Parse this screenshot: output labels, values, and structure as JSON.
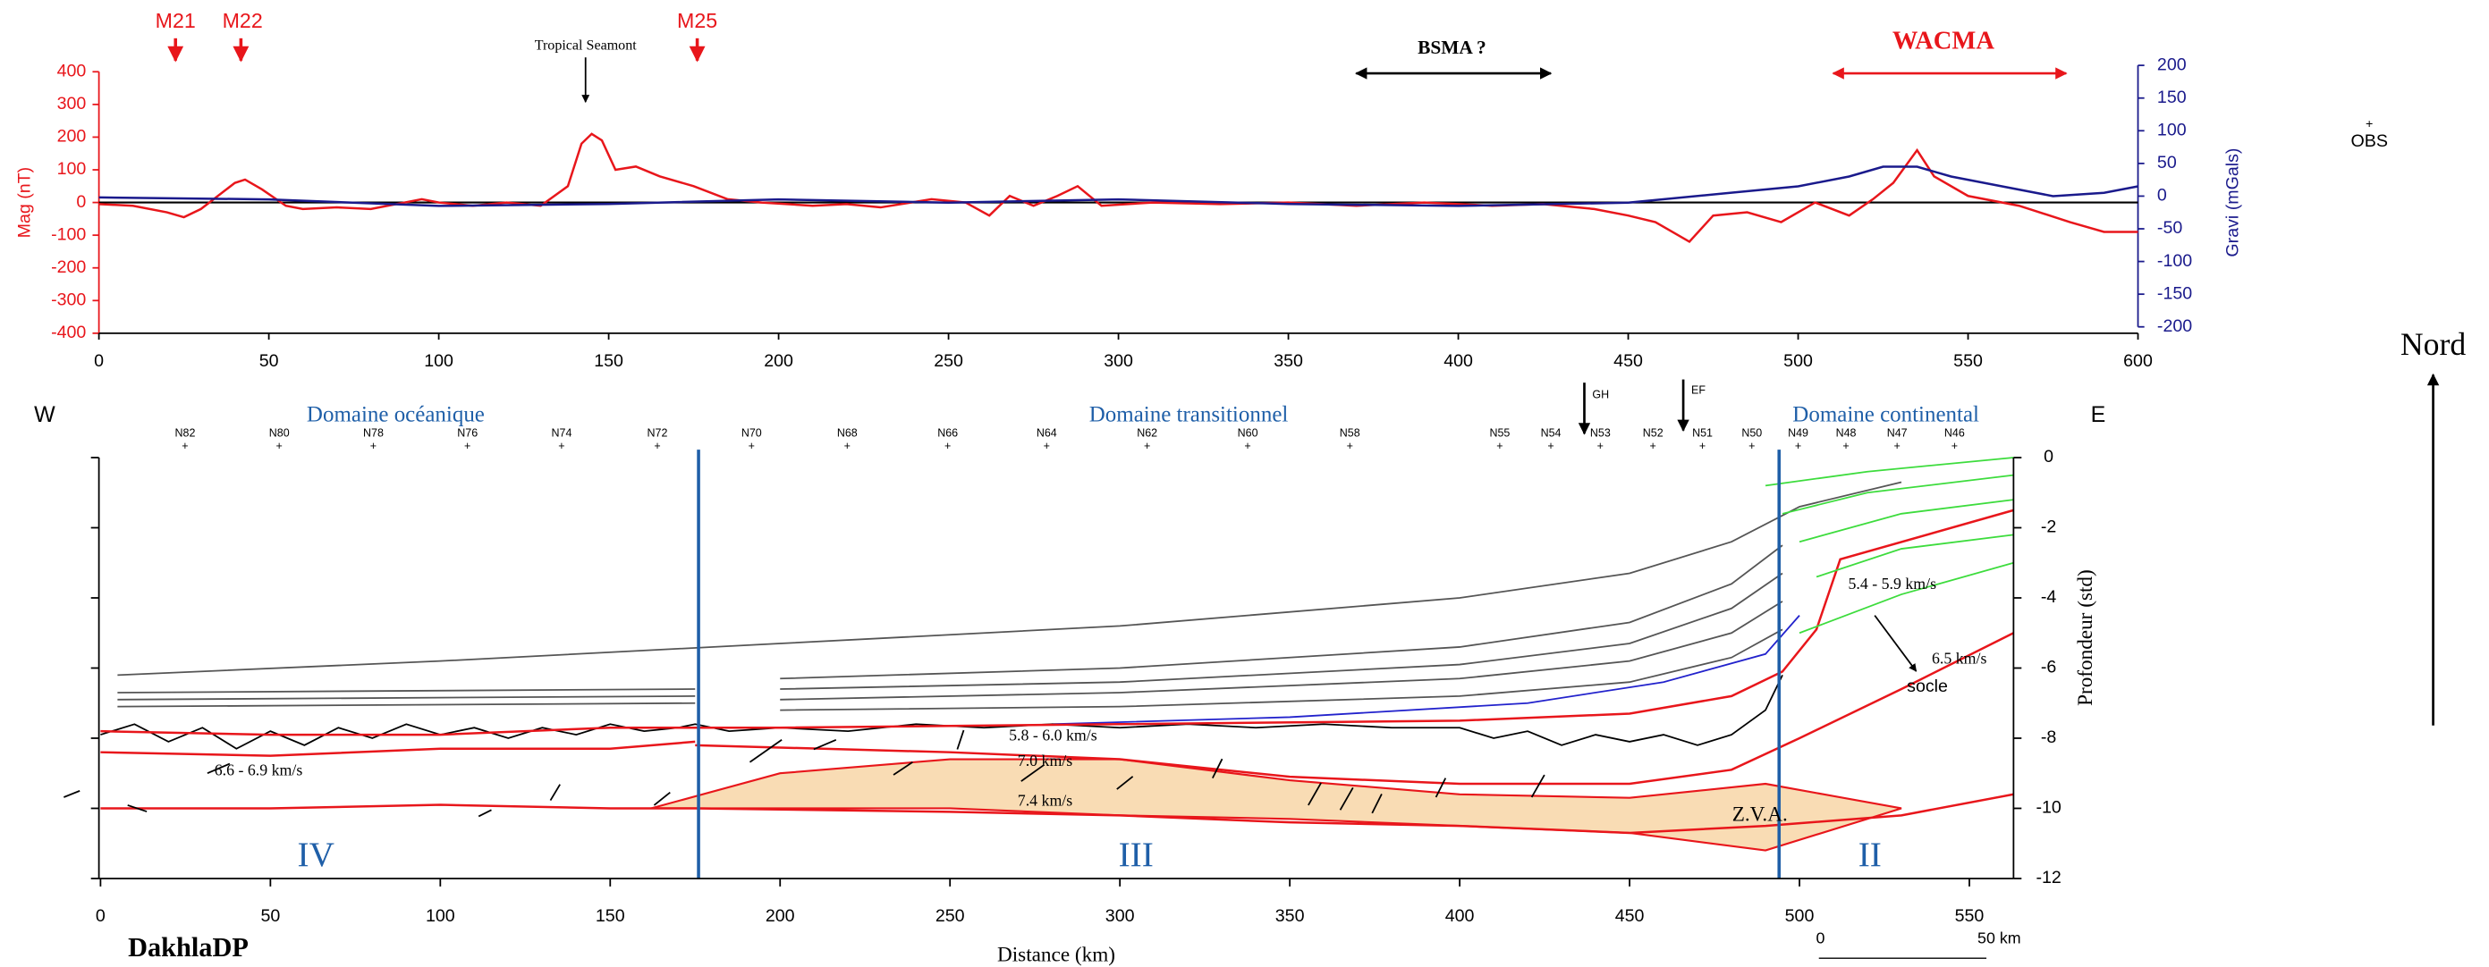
{
  "chart_data": [
    {
      "type": "line",
      "ylabel": "Mag (nT)",
      "y2label": "Gravi (mGals)",
      "xlim": [
        0,
        600
      ],
      "xticks": [
        0,
        50,
        100,
        150,
        200,
        250,
        300,
        350,
        400,
        450,
        500,
        550,
        600
      ],
      "ylim": [
        -400,
        400
      ],
      "yticks": [
        -400,
        -300,
        -200,
        -100,
        0,
        100,
        200,
        300,
        400
      ],
      "y2lim": [
        -200,
        200
      ],
      "y2ticks": [
        -200,
        -150,
        -100,
        -50,
        0,
        50,
        100,
        150,
        200
      ],
      "series": [
        {
          "color": "#e8161b",
          "x": [
            0,
            10,
            20,
            25,
            30,
            35,
            40,
            43,
            48,
            55,
            60,
            70,
            80,
            90,
            95,
            100,
            110,
            120,
            130,
            138,
            142,
            145,
            148,
            152,
            158,
            165,
            175,
            185,
            195,
            210,
            220,
            230,
            245,
            255,
            262,
            268,
            275,
            282,
            288,
            295,
            310,
            330,
            350,
            370,
            390,
            410,
            425,
            440,
            450,
            458,
            468,
            475,
            485,
            495,
            505,
            515,
            522,
            528,
            535,
            540,
            550,
            565,
            580,
            590,
            600
          ],
          "values": [
            -5,
            -10,
            -30,
            -45,
            -20,
            20,
            60,
            70,
            40,
            -10,
            -20,
            -15,
            -20,
            0,
            10,
            0,
            -10,
            0,
            -10,
            50,
            180,
            210,
            190,
            100,
            110,
            80,
            50,
            10,
            0,
            -10,
            -5,
            -15,
            10,
            0,
            -40,
            20,
            -10,
            20,
            50,
            -10,
            0,
            -5,
            0,
            -10,
            0,
            -10,
            -5,
            -20,
            -40,
            -60,
            -120,
            -40,
            -30,
            -60,
            0,
            -40,
            10,
            60,
            160,
            80,
            20,
            -10,
            -60,
            -90,
            -90
          ]
        },
        {
          "color": "#1a1a8c",
          "axis": "y2",
          "x": [
            0,
            50,
            100,
            150,
            200,
            250,
            300,
            350,
            400,
            450,
            480,
            500,
            515,
            525,
            535,
            545,
            560,
            575,
            590,
            600
          ],
          "values": [
            -2,
            -5,
            -15,
            -12,
            -5,
            -10,
            -5,
            -12,
            -15,
            -10,
            5,
            15,
            30,
            45,
            45,
            30,
            15,
            0,
            5,
            15
          ]
        }
      ],
      "annotations": [
        "M21",
        "M22",
        "M25",
        "Tropical Seamont",
        "BSMA ?",
        "WACMA",
        "OBS"
      ]
    },
    {
      "type": "section",
      "title": "DakhlaDP",
      "xlabel": "Distance (km)",
      "ylabel": "Profondeur (std)",
      "xlim": [
        0,
        563
      ],
      "xticks": [
        0,
        50,
        100,
        150,
        200,
        250,
        300,
        350,
        400,
        450,
        500,
        550
      ],
      "ylim": [
        -12,
        0
      ],
      "yticks": [
        -12,
        -10,
        -8,
        -6,
        -4,
        -2,
        0
      ],
      "domains": [
        "Domaine océanique",
        "Domaine transitionnel",
        "Domaine continental"
      ],
      "zones": [
        "IV",
        "III",
        "II"
      ],
      "directions": [
        "W",
        "E",
        "Nord"
      ],
      "stations": [
        "N82",
        "N80",
        "N78",
        "N76",
        "N74",
        "N72",
        "N70",
        "N68",
        "N66",
        "N64",
        "N62",
        "N60",
        "N58",
        "N55",
        "N54",
        "N53",
        "N52",
        "N51",
        "N50",
        "N49",
        "N48",
        "N47",
        "N46"
      ],
      "markers": [
        "GH",
        "EF"
      ],
      "velocities": [
        "5.8 - 6.0 km/s",
        "7.0 km/s",
        "7.4 km/s",
        "6.6 - 6.9 km/s",
        "5.4 - 5.9 km/s",
        "6.5 km/s"
      ],
      "labels": [
        "Z.V.A.",
        "socle"
      ],
      "scale": [
        "0",
        "50 km"
      ],
      "boundaries": [
        176,
        494
      ],
      "zva": {
        "color": "#f9dcb4",
        "x": [
          162,
          200,
          250,
          300,
          350,
          400,
          450,
          490,
          530
        ],
        "top": [
          -10.0,
          -9.0,
          -8.6,
          -8.6,
          -9.2,
          -9.6,
          -9.7,
          -9.3,
          -10.0
        ],
        "bottom": [
          -10.0,
          -10.0,
          -10.0,
          -10.2,
          -10.3,
          -10.5,
          -10.7,
          -11.2,
          -10.0
        ]
      },
      "horizons": [
        {
          "color": "#555555",
          "x": [
            5,
            100,
            200,
            300,
            400,
            450,
            480,
            500,
            530
          ],
          "values": [
            -6.2,
            -5.8,
            -5.3,
            -4.8,
            -4.0,
            -3.3,
            -2.4,
            -1.4,
            -0.7
          ]
        },
        {
          "color": "#555555",
          "x": [
            5,
            175
          ],
          "values": [
            -6.7,
            -6.6
          ]
        },
        {
          "color": "#555555",
          "x": [
            5,
            175
          ],
          "values": [
            -6.9,
            -6.8
          ]
        },
        {
          "color": "#555555",
          "x": [
            5,
            175
          ],
          "values": [
            -7.1,
            -7.0
          ]
        },
        {
          "color": "#555555",
          "x": [
            200,
            300,
            400,
            450,
            480,
            495
          ],
          "values": [
            -6.3,
            -6.0,
            -5.4,
            -4.7,
            -3.6,
            -2.5
          ]
        },
        {
          "color": "#555555",
          "x": [
            200,
            300,
            400,
            450,
            480,
            495
          ],
          "values": [
            -6.6,
            -6.4,
            -5.9,
            -5.3,
            -4.3,
            -3.3
          ]
        },
        {
          "color": "#555555",
          "x": [
            200,
            300,
            400,
            450,
            480,
            495
          ],
          "values": [
            -6.9,
            -6.7,
            -6.3,
            -5.8,
            -5.0,
            -4.1
          ]
        },
        {
          "color": "#555555",
          "x": [
            200,
            300,
            400,
            450,
            480,
            495
          ],
          "values": [
            -7.2,
            -7.1,
            -6.8,
            -6.4,
            -5.7,
            -4.9
          ]
        },
        {
          "color": "#2222cc",
          "x": [
            280,
            350,
            420,
            460,
            490,
            500
          ],
          "values": [
            -7.6,
            -7.4,
            -7.0,
            -6.4,
            -5.6,
            -4.5
          ]
        },
        {
          "color": "#000000",
          "x": [
            0,
            10,
            20,
            30,
            40,
            50,
            60,
            70,
            80,
            90,
            100,
            110,
            120,
            130,
            140,
            150,
            160,
            170,
            175,
            185,
            200,
            220,
            240,
            260,
            280,
            300,
            320,
            340,
            360,
            380,
            400,
            410,
            420,
            430,
            440,
            450,
            460,
            470,
            480,
            490,
            495
          ],
          "values": [
            -7.9,
            -7.6,
            -8.1,
            -7.7,
            -8.3,
            -7.8,
            -8.2,
            -7.7,
            -8.0,
            -7.6,
            -7.9,
            -7.7,
            -8.0,
            -7.7,
            -7.9,
            -7.6,
            -7.8,
            -7.7,
            -7.6,
            -7.8,
            -7.7,
            -7.8,
            -7.6,
            -7.7,
            -7.6,
            -7.7,
            -7.6,
            -7.7,
            -7.6,
            -7.7,
            -7.7,
            -8.0,
            -7.8,
            -8.2,
            -7.9,
            -8.1,
            -7.9,
            -8.2,
            -7.9,
            -7.2,
            -6.2
          ]
        },
        {
          "color": "#e8161b",
          "x": [
            0,
            50,
            100,
            150,
            200,
            300,
            400,
            450,
            480,
            495,
            505,
            512,
            563
          ],
          "values": [
            -7.8,
            -7.9,
            -7.9,
            -7.7,
            -7.7,
            -7.6,
            -7.5,
            -7.3,
            -6.8,
            -6.1,
            -4.9,
            -2.9,
            -1.5
          ]
        },
        {
          "color": "#e8161b",
          "x": [
            0,
            50,
            100,
            150,
            175
          ],
          "values": [
            -8.4,
            -8.5,
            -8.3,
            -8.3,
            -8.1
          ]
        },
        {
          "color": "#e8161b",
          "x": [
            175,
            250,
            300,
            350,
            400,
            450,
            480,
            500,
            530,
            563
          ],
          "values": [
            -8.2,
            -8.4,
            -8.6,
            -9.1,
            -9.3,
            -9.3,
            -8.9,
            -8.0,
            -6.6,
            -5.0
          ]
        },
        {
          "color": "#e8161b",
          "x": [
            0,
            50,
            100,
            150,
            175,
            250,
            300,
            350,
            400,
            450,
            490,
            530,
            563
          ],
          "values": [
            -10.0,
            -10.0,
            -9.9,
            -10.0,
            -10.0,
            -10.1,
            -10.2,
            -10.4,
            -10.5,
            -10.7,
            -10.5,
            -10.2,
            -9.6
          ]
        },
        {
          "color": "#3ddc3d",
          "x": [
            490,
            520,
            563
          ],
          "values": [
            -0.8,
            -0.4,
            0
          ]
        },
        {
          "color": "#3ddc3d",
          "x": [
            495,
            520,
            563
          ],
          "values": [
            -1.6,
            -1.0,
            -0.5
          ]
        },
        {
          "color": "#3ddc3d",
          "x": [
            500,
            530,
            563
          ],
          "values": [
            -2.4,
            -1.6,
            -1.2
          ]
        },
        {
          "color": "#3ddc3d",
          "x": [
            505,
            530,
            563
          ],
          "values": [
            -3.4,
            -2.6,
            -2.2
          ]
        },
        {
          "color": "#3ddc3d",
          "x": [
            500,
            530,
            563
          ],
          "values": [
            -5.0,
            -3.9,
            -3.0
          ]
        }
      ]
    }
  ]
}
